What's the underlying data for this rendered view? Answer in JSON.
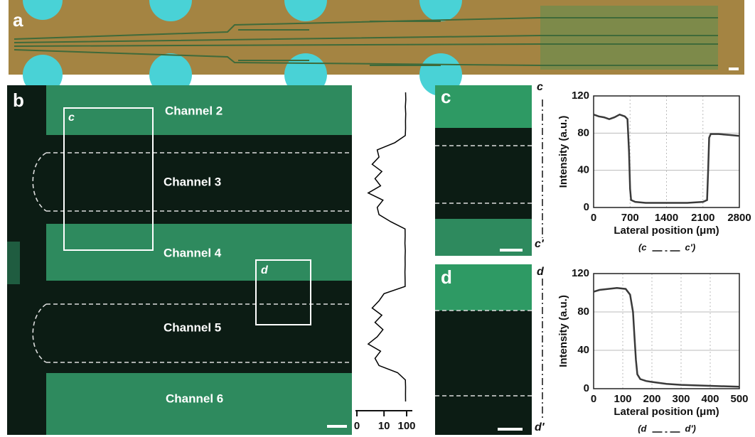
{
  "panels": [
    "a",
    "b",
    "c",
    "d"
  ],
  "channels": [
    "Channel 2",
    "Channel 3",
    "Channel 4",
    "Channel 5",
    "Channel 6"
  ],
  "boxes": [
    "c",
    "d"
  ],
  "profile_ends": [
    [
      "c",
      "c'"
    ],
    [
      "d",
      "d'"
    ]
  ],
  "chart_data": [
    {
      "type": "line",
      "xlabel": "Lateral position (μm)",
      "ylabel": "Intensity (a.u.)",
      "caption_start": "(c",
      "caption_end": "c')",
      "x": [
        0,
        100,
        200,
        300,
        400,
        500,
        600,
        650,
        680,
        700,
        720,
        800,
        1000,
        1400,
        1800,
        2100,
        2180,
        2200,
        2220,
        2250,
        2400,
        2600,
        2800
      ],
      "values": [
        100,
        98,
        97,
        95,
        97,
        100,
        98,
        95,
        60,
        20,
        8,
        6,
        5,
        5,
        5,
        6,
        8,
        40,
        75,
        79,
        79,
        78,
        77
      ],
      "color": "#3a3a3a",
      "xlim": [
        0,
        2800
      ],
      "ylim": [
        0,
        120
      ],
      "xticks": [
        0,
        700,
        1400,
        2100,
        2800
      ],
      "yticks": [
        0,
        40,
        80,
        120
      ],
      "grid": true
    },
    {
      "type": "line",
      "xlabel": "Lateral position (μm)",
      "ylabel": "Intensity (a.u.)",
      "caption_start": "(d",
      "caption_end": "d')",
      "x": [
        0,
        20,
        50,
        80,
        110,
        125,
        135,
        140,
        145,
        150,
        160,
        180,
        200,
        250,
        300,
        400,
        500
      ],
      "values": [
        101,
        103,
        104,
        105,
        104,
        98,
        80,
        55,
        30,
        15,
        10,
        8,
        7,
        5,
        4,
        3,
        2
      ],
      "color": "#3a3a3a",
      "xlim": [
        0,
        500
      ],
      "ylim": [
        0,
        120
      ],
      "xticks": [
        0,
        100,
        200,
        300,
        400,
        500
      ],
      "yticks": [
        0,
        40,
        80,
        120
      ],
      "grid": true
    },
    {
      "type": "profile",
      "xscale": "symlog",
      "linthresh": 1,
      "color": "#000000",
      "xlim": [
        0,
        100
      ],
      "xticks": [
        0,
        10,
        100
      ],
      "values": [
        90,
        92,
        88,
        91,
        89,
        90,
        87,
        30,
        5,
        6,
        3,
        8,
        4,
        7,
        2,
        9,
        5,
        6,
        20,
        85,
        86,
        84,
        87,
        85,
        86,
        84,
        85,
        86,
        10,
        6,
        3,
        8,
        4,
        9,
        5,
        2,
        7,
        4,
        6,
        40,
        88,
        90,
        89,
        90
      ]
    }
  ]
}
